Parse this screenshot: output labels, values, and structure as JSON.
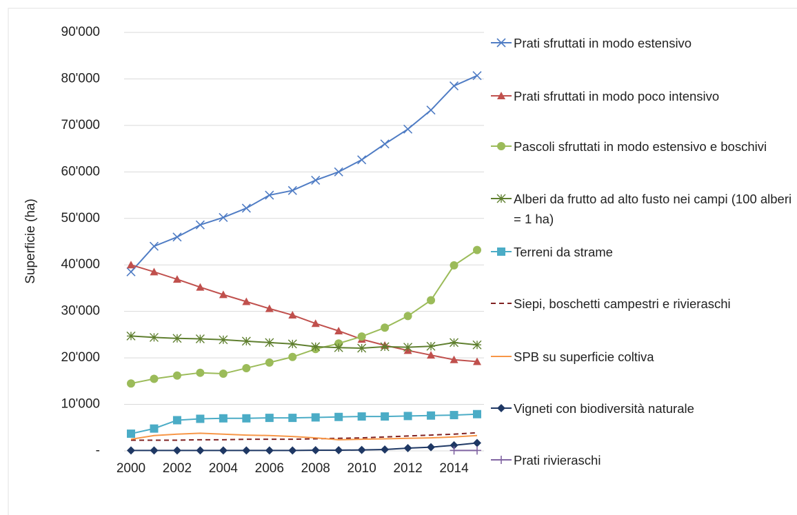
{
  "chart_data": {
    "type": "line",
    "y_label": "Superficie (ha)",
    "x": [
      2000,
      2001,
      2002,
      2003,
      2004,
      2005,
      2006,
      2007,
      2008,
      2009,
      2010,
      2011,
      2012,
      2013,
      2014,
      2015
    ],
    "xlim": [
      2000,
      2015
    ],
    "xticks": [
      2000,
      2002,
      2004,
      2006,
      2008,
      2010,
      2012,
      2014
    ],
    "ylim": [
      0,
      90000
    ],
    "yticks": [
      {
        "value": 0,
        "label": "-"
      },
      {
        "value": 10000,
        "label": "10'000"
      },
      {
        "value": 20000,
        "label": "20'000"
      },
      {
        "value": 30000,
        "label": "30'000"
      },
      {
        "value": 40000,
        "label": "40'000"
      },
      {
        "value": 50000,
        "label": "50'000"
      },
      {
        "value": 60000,
        "label": "60'000"
      },
      {
        "value": 70000,
        "label": "70'000"
      },
      {
        "value": 80000,
        "label": "80'000"
      },
      {
        "value": 90000,
        "label": "90'000"
      }
    ],
    "grid": true,
    "legend": "right",
    "series": [
      {
        "name": "Prati sfruttati in modo estensivo",
        "color": "#4f7cc4",
        "marker": "x",
        "values": [
          38500,
          44000,
          46000,
          48600,
          50200,
          52200,
          55000,
          56000,
          58200,
          60000,
          62600,
          66000,
          69200,
          73300,
          78500,
          80700
        ]
      },
      {
        "name": "Prati sfruttati in modo poco intensivo",
        "color": "#c0504d",
        "marker": "triangle",
        "values": [
          40000,
          38500,
          36900,
          35200,
          33600,
          32100,
          30600,
          29200,
          27400,
          25800,
          24000,
          22700,
          21600,
          20600,
          19600,
          19200
        ]
      },
      {
        "name": "Pascoli sfruttati in modo estensivo e boschivi",
        "color": "#9bbb59",
        "marker": "circle",
        "values": [
          14500,
          15500,
          16200,
          16800,
          16600,
          17800,
          19000,
          20200,
          21900,
          23100,
          24600,
          26500,
          29000,
          32400,
          39900,
          43200
        ]
      },
      {
        "name": "Alberi da frutto ad alto fusto nei campi (100 alberi = 1 ha)",
        "color": "#5f7f2f",
        "marker": "star",
        "values": [
          24700,
          24400,
          24200,
          24100,
          23900,
          23600,
          23300,
          23000,
          22400,
          22200,
          22100,
          22400,
          22300,
          22500,
          23300,
          22800
        ]
      },
      {
        "name": "Terreni da strame",
        "color": "#4bacc6",
        "marker": "square",
        "values": [
          3700,
          4800,
          6600,
          6900,
          7000,
          7000,
          7100,
          7100,
          7200,
          7300,
          7400,
          7400,
          7500,
          7600,
          7700,
          7900
        ]
      },
      {
        "name": "Siepi, boschetti campestri e rivieraschi",
        "color": "#7f2020",
        "marker": "none",
        "dash": true,
        "values": [
          2300,
          2300,
          2300,
          2400,
          2400,
          2500,
          2500,
          2500,
          2600,
          2700,
          2800,
          3000,
          3200,
          3400,
          3600,
          3900
        ]
      },
      {
        "name": "SPB su superficie coltiva",
        "color": "#f79646",
        "marker": "none",
        "values": [
          2500,
          3300,
          3600,
          3800,
          3600,
          3400,
          3300,
          3100,
          2800,
          2400,
          2500,
          2600,
          2700,
          2800,
          3000,
          3300
        ]
      },
      {
        "name": "Vigneti con biodiversità naturale",
        "color": "#1f3864",
        "marker": "diamond",
        "values": [
          100,
          100,
          100,
          100,
          100,
          100,
          100,
          100,
          150,
          150,
          200,
          300,
          600,
          800,
          1200,
          1700
        ]
      },
      {
        "name": "Prati rivieraschi",
        "color": "#8064a2",
        "marker": "plus",
        "values": [
          null,
          null,
          null,
          null,
          null,
          null,
          null,
          null,
          null,
          null,
          null,
          null,
          null,
          null,
          100,
          100
        ]
      }
    ]
  }
}
